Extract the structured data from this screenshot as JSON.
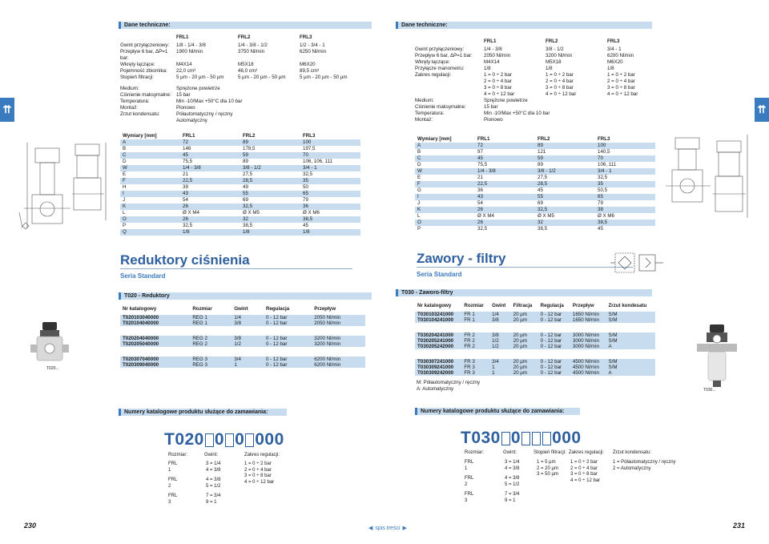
{
  "left": {
    "tech_header": "Dane techniczne:",
    "spec_cols": [
      "FRL1",
      "FRL2",
      "FRL3"
    ],
    "spec_rows": [
      {
        "label": "Gwint przyłączeniowy:",
        "v": [
          "1/8 - 1/4 - 3/8",
          "1/4 - 3/8 - 1/2",
          "1/2 - 3/4 - 1"
        ]
      },
      {
        "label": "Przepływ 6 bar, ΔP=1 bar:",
        "v": [
          "1900 Nl/min",
          "3750 Nl/min",
          "6250 Nl/min"
        ]
      },
      {
        "label": "Wkręty łączące:",
        "v": [
          "M4X14",
          "M5X18",
          "M6X20"
        ]
      },
      {
        "label": "Pojemność zbiornika:",
        "v": [
          "22,0 cm³",
          "46,0 cm³",
          "89,5 cm³"
        ]
      },
      {
        "label": "Stopień filtracji:",
        "v": [
          "5 µm - 20 µm - 50 µm",
          "5 µm - 20 µm - 50 µm",
          "5 µm - 20 µm - 50 µm"
        ]
      }
    ],
    "spec_rows2": [
      {
        "label": "Medium:",
        "v": "Sprężone powietrze"
      },
      {
        "label": "Ciśnienie maksymalne:",
        "v": "15 bar"
      },
      {
        "label": "Temperatura:",
        "v": "Min -10/Max +50°C dla 10 bar"
      },
      {
        "label": "Montaż:",
        "v": "Pionowo"
      },
      {
        "label": "Zrzut kondensatu:",
        "v": "Półautomatyczny / ręczny"
      },
      {
        "label": "",
        "v": "Automatyczny"
      }
    ],
    "dim_header": [
      "Wymiary [mm]",
      "FRL1",
      "FRL2",
      "FRL3"
    ],
    "dims": [
      [
        "A",
        "72",
        "89",
        "100"
      ],
      [
        "B",
        "146",
        "178,5",
        "197,5"
      ],
      [
        "C",
        "45",
        "59",
        "70"
      ],
      [
        "D",
        "75,5",
        "89",
        "106, 106, 111"
      ],
      [
        "W",
        "1/4 - 3/8",
        "3/8 - 1/2",
        "3/4 - 1"
      ],
      [
        "E",
        "21",
        "27,5",
        "32,5"
      ],
      [
        "F",
        "22,5",
        "28,5",
        "35"
      ],
      [
        "H",
        "39",
        "49",
        "50"
      ],
      [
        "I",
        "43",
        "55",
        "65"
      ],
      [
        "J",
        "54",
        "69",
        "79"
      ],
      [
        "K",
        "26",
        "32,5",
        "36"
      ],
      [
        "L",
        "Ø X M4",
        "Ø X M5",
        "Ø X M6"
      ],
      [
        "O",
        "26",
        "32",
        "38,5"
      ],
      [
        "P",
        "32,5",
        "38,5",
        "45"
      ],
      [
        "Q",
        "1/8",
        "1/8",
        "1/8"
      ]
    ],
    "title": "Reduktory ciśnienia",
    "subtitle": "Seria Standard",
    "product_header": "T020 - Reduktory",
    "prod_cols": [
      "Nr katalogowy",
      "Rozmiar",
      "Gwint",
      "Regulacja",
      "Przepływ"
    ],
    "products": [
      [
        "T020103040000",
        "REG 1",
        "1/4",
        "0 - 12 bar",
        "2050 Nl/min"
      ],
      [
        "T020104040000",
        "REG 1",
        "3/8",
        "0 - 12 bar",
        "2050 Nl/min"
      ],
      [
        "T020204040000",
        "REG 2",
        "3/8",
        "0 - 12 bar",
        "3200 Nl/min"
      ],
      [
        "T020205040000",
        "REG 2",
        "1/2",
        "0 - 12 bar",
        "3200 Nl/min"
      ],
      [
        "T020307040000",
        "REG 3",
        "3/4",
        "0 - 12 bar",
        "6200 Nl/min"
      ],
      [
        "T020309040000",
        "REG 3",
        "1",
        "0 - 12 bar",
        "6200 Nl/min"
      ]
    ],
    "photo_caption": "T020...",
    "order_header": "Numery katalogowe produktu służące do zamawiania:",
    "order_prefix": "T020",
    "order_mid1": "0",
    "order_mid2": "0",
    "order_suffix": "000",
    "ord_labels": [
      "Rozmiar:",
      "Gwint:",
      "Zakres regulacji:"
    ],
    "ord_frl1": "FRL 1",
    "ord_frl2": "FRL 2",
    "ord_frl3": "FRL 3",
    "ord_g1": [
      "3 = 1/4",
      "4 = 3/8"
    ],
    "ord_g2": [
      "4 = 3/8",
      "5 = 1/2"
    ],
    "ord_g3": [
      "7 = 3/4",
      "9 =   1"
    ],
    "ord_r": [
      "1 = 0 ÷ 2 bar",
      "2 = 0 ÷ 4 bar",
      "3 = 0 ÷ 8 bar",
      "4 = 0 ÷ 12 bar"
    ],
    "page_num": "230"
  },
  "right": {
    "tech_header": "Dane techniczne:",
    "spec_cols": [
      "FRL1",
      "FRL2",
      "FRL3"
    ],
    "spec_rows": [
      {
        "label": "Gwint przyłączeniowy:",
        "v": [
          "1/4 - 3/8",
          "3/8 - 1/2",
          "3/4 - 1"
        ]
      },
      {
        "label": "Przepływ 6 bar, ΔP=1 bar:",
        "v": [
          "2050 Nl/min",
          "3200 Nl/min",
          "6200 Nl/min"
        ]
      },
      {
        "label": "Wkręty łączące:",
        "v": [
          "M4X14",
          "M5X18",
          "M6X20"
        ]
      },
      {
        "label": "Przyłącze manometru:",
        "v": [
          "1/8",
          "1/8",
          "1/8"
        ]
      },
      {
        "label": "Zakres regulacji:",
        "v": [
          "1 = 0 ÷ 2 bar",
          "1 = 0 ÷ 2 bar",
          "1 = 0 ÷ 2 bar"
        ]
      },
      {
        "label": "",
        "v": [
          "2 = 0 ÷ 4 bar",
          "2 = 0 ÷ 4 bar",
          "2 = 0 ÷ 4 bar"
        ]
      },
      {
        "label": "",
        "v": [
          "3 = 0 ÷ 8 bar",
          "3 = 0 ÷ 8 bar",
          "3 = 0 ÷ 8 bar"
        ]
      },
      {
        "label": "",
        "v": [
          "4 = 0 ÷ 12 bar",
          "4 = 0 ÷ 12 bar",
          "4 = 0 ÷ 12 bar"
        ]
      }
    ],
    "spec_rows2": [
      {
        "label": "Medium:",
        "v": "Sprężone powietrze"
      },
      {
        "label": "Ciśnienie maksymalne:",
        "v": "15 bar"
      },
      {
        "label": "Temperatura:",
        "v": "Min -10/Max +50°C dla 10 bar"
      },
      {
        "label": "Montaż:",
        "v": "Pionowo"
      }
    ],
    "dim_header": [
      "Wymiary [mm]",
      "FRL1",
      "FRL2",
      "FRL3"
    ],
    "dims": [
      [
        "A",
        "72",
        "89",
        "100"
      ],
      [
        "B",
        "97",
        "121",
        "140,5"
      ],
      [
        "C",
        "45",
        "59",
        "70"
      ],
      [
        "D",
        "75,5",
        "89",
        "106, 111"
      ],
      [
        "W",
        "1/4 - 3/8",
        "3/8 - 1/2",
        "3/4 - 1"
      ],
      [
        "E",
        "21",
        "27,5",
        "32,5"
      ],
      [
        "F",
        "22,5",
        "28,5",
        "35"
      ],
      [
        "G",
        "36",
        "45",
        "50,5"
      ],
      [
        "I",
        "43",
        "55",
        "65"
      ],
      [
        "J",
        "54",
        "69",
        "79"
      ],
      [
        "K",
        "26",
        "32,5",
        "38"
      ],
      [
        "L",
        "Ø X M4",
        "Ø X M5",
        "Ø X M6"
      ],
      [
        "O",
        "26",
        "32",
        "38,5"
      ],
      [
        "P",
        "32,5",
        "38,5",
        "45"
      ]
    ],
    "title": "Zawory - filtry",
    "subtitle": "Seria Standard",
    "product_header": "T030 - Zaworo-filtry",
    "prod_cols": [
      "Nr katalogowy",
      "Rozmiar",
      "Gwint",
      "Filtracja",
      "Regulacja",
      "Przepływ",
      "Zrzut kondesatu"
    ],
    "products": [
      [
        "T030103241000",
        "FR 1",
        "1/4",
        "20 µm",
        "0 - 12 bar",
        "1650 Nl/min",
        "S/M"
      ],
      [
        "T030104241000",
        "FR 1",
        "3/8",
        "20 µm",
        "0 - 12 bar",
        "1650 Nl/min",
        "S/M"
      ],
      [
        "T030204241000",
        "FR 2",
        "3/8",
        "20 µm",
        "0 - 12 bar",
        "3000 Nl/min",
        "S/M"
      ],
      [
        "T030205241000",
        "FR 2",
        "1/2",
        "20 µm",
        "0 - 12 bar",
        "3000 Nl/min",
        "S/M"
      ],
      [
        "T030205242000",
        "FR 2",
        "1/2",
        "20 µm",
        "0 - 12 bar",
        "3000 Nl/min",
        "A"
      ],
      [
        "T030307241000",
        "FR 3",
        "3/4",
        "20 µm",
        "0 - 12 bar",
        "4500 Nl/min",
        "S/M"
      ],
      [
        "T030309241000",
        "FR 3",
        "1",
        "20 µm",
        "0 - 12 bar",
        "4500 Nl/min",
        "S/M"
      ],
      [
        "T030309242000",
        "FR 3",
        "1",
        "20 µm",
        "0 - 12 bar",
        "4500 Nl/min",
        "A"
      ]
    ],
    "legend": [
      "M: Półautomatyczny / ręczny",
      "A: Automatyczny"
    ],
    "photo_caption": "T030...",
    "order_header": "Numery katalogowe produktu służące do zamawiania:",
    "order_prefix": "T030",
    "order_mid1": "0",
    "order_suffix": "000",
    "ord_labels": [
      "Rozmiar:",
      "Gwint:",
      "Stopień filtracji:",
      "Zakres regulacji:",
      "Zrzut kondensatu:"
    ],
    "ord_frl1": "FRL 1",
    "ord_frl2": "FRL 2",
    "ord_frl3": "FRL 3",
    "ord_g1": [
      "3 = 1/4",
      "4 = 3/8"
    ],
    "ord_g2": [
      "4 = 3/8",
      "5 = 1/2"
    ],
    "ord_g3": [
      "7 = 3/4",
      "9 =   1"
    ],
    "ord_f": [
      "1 =   5 µm",
      "2 = 20 µm",
      "3 = 50 µm"
    ],
    "ord_r": [
      "1 = 0 ÷ 2 bar",
      "2 = 0 ÷ 4 bar",
      "3 = 0 ÷ 8 bar",
      "4 = 0 ÷ 12 bar"
    ],
    "ord_z": [
      "1 = Półautomatyczny / ręczny",
      "2 = Automatyczny"
    ],
    "page_num": "231"
  },
  "nav": "spis treści",
  "colors": {
    "accent": "#3a7abf",
    "band": "#c7dcee",
    "title": "#2e5f9e"
  }
}
